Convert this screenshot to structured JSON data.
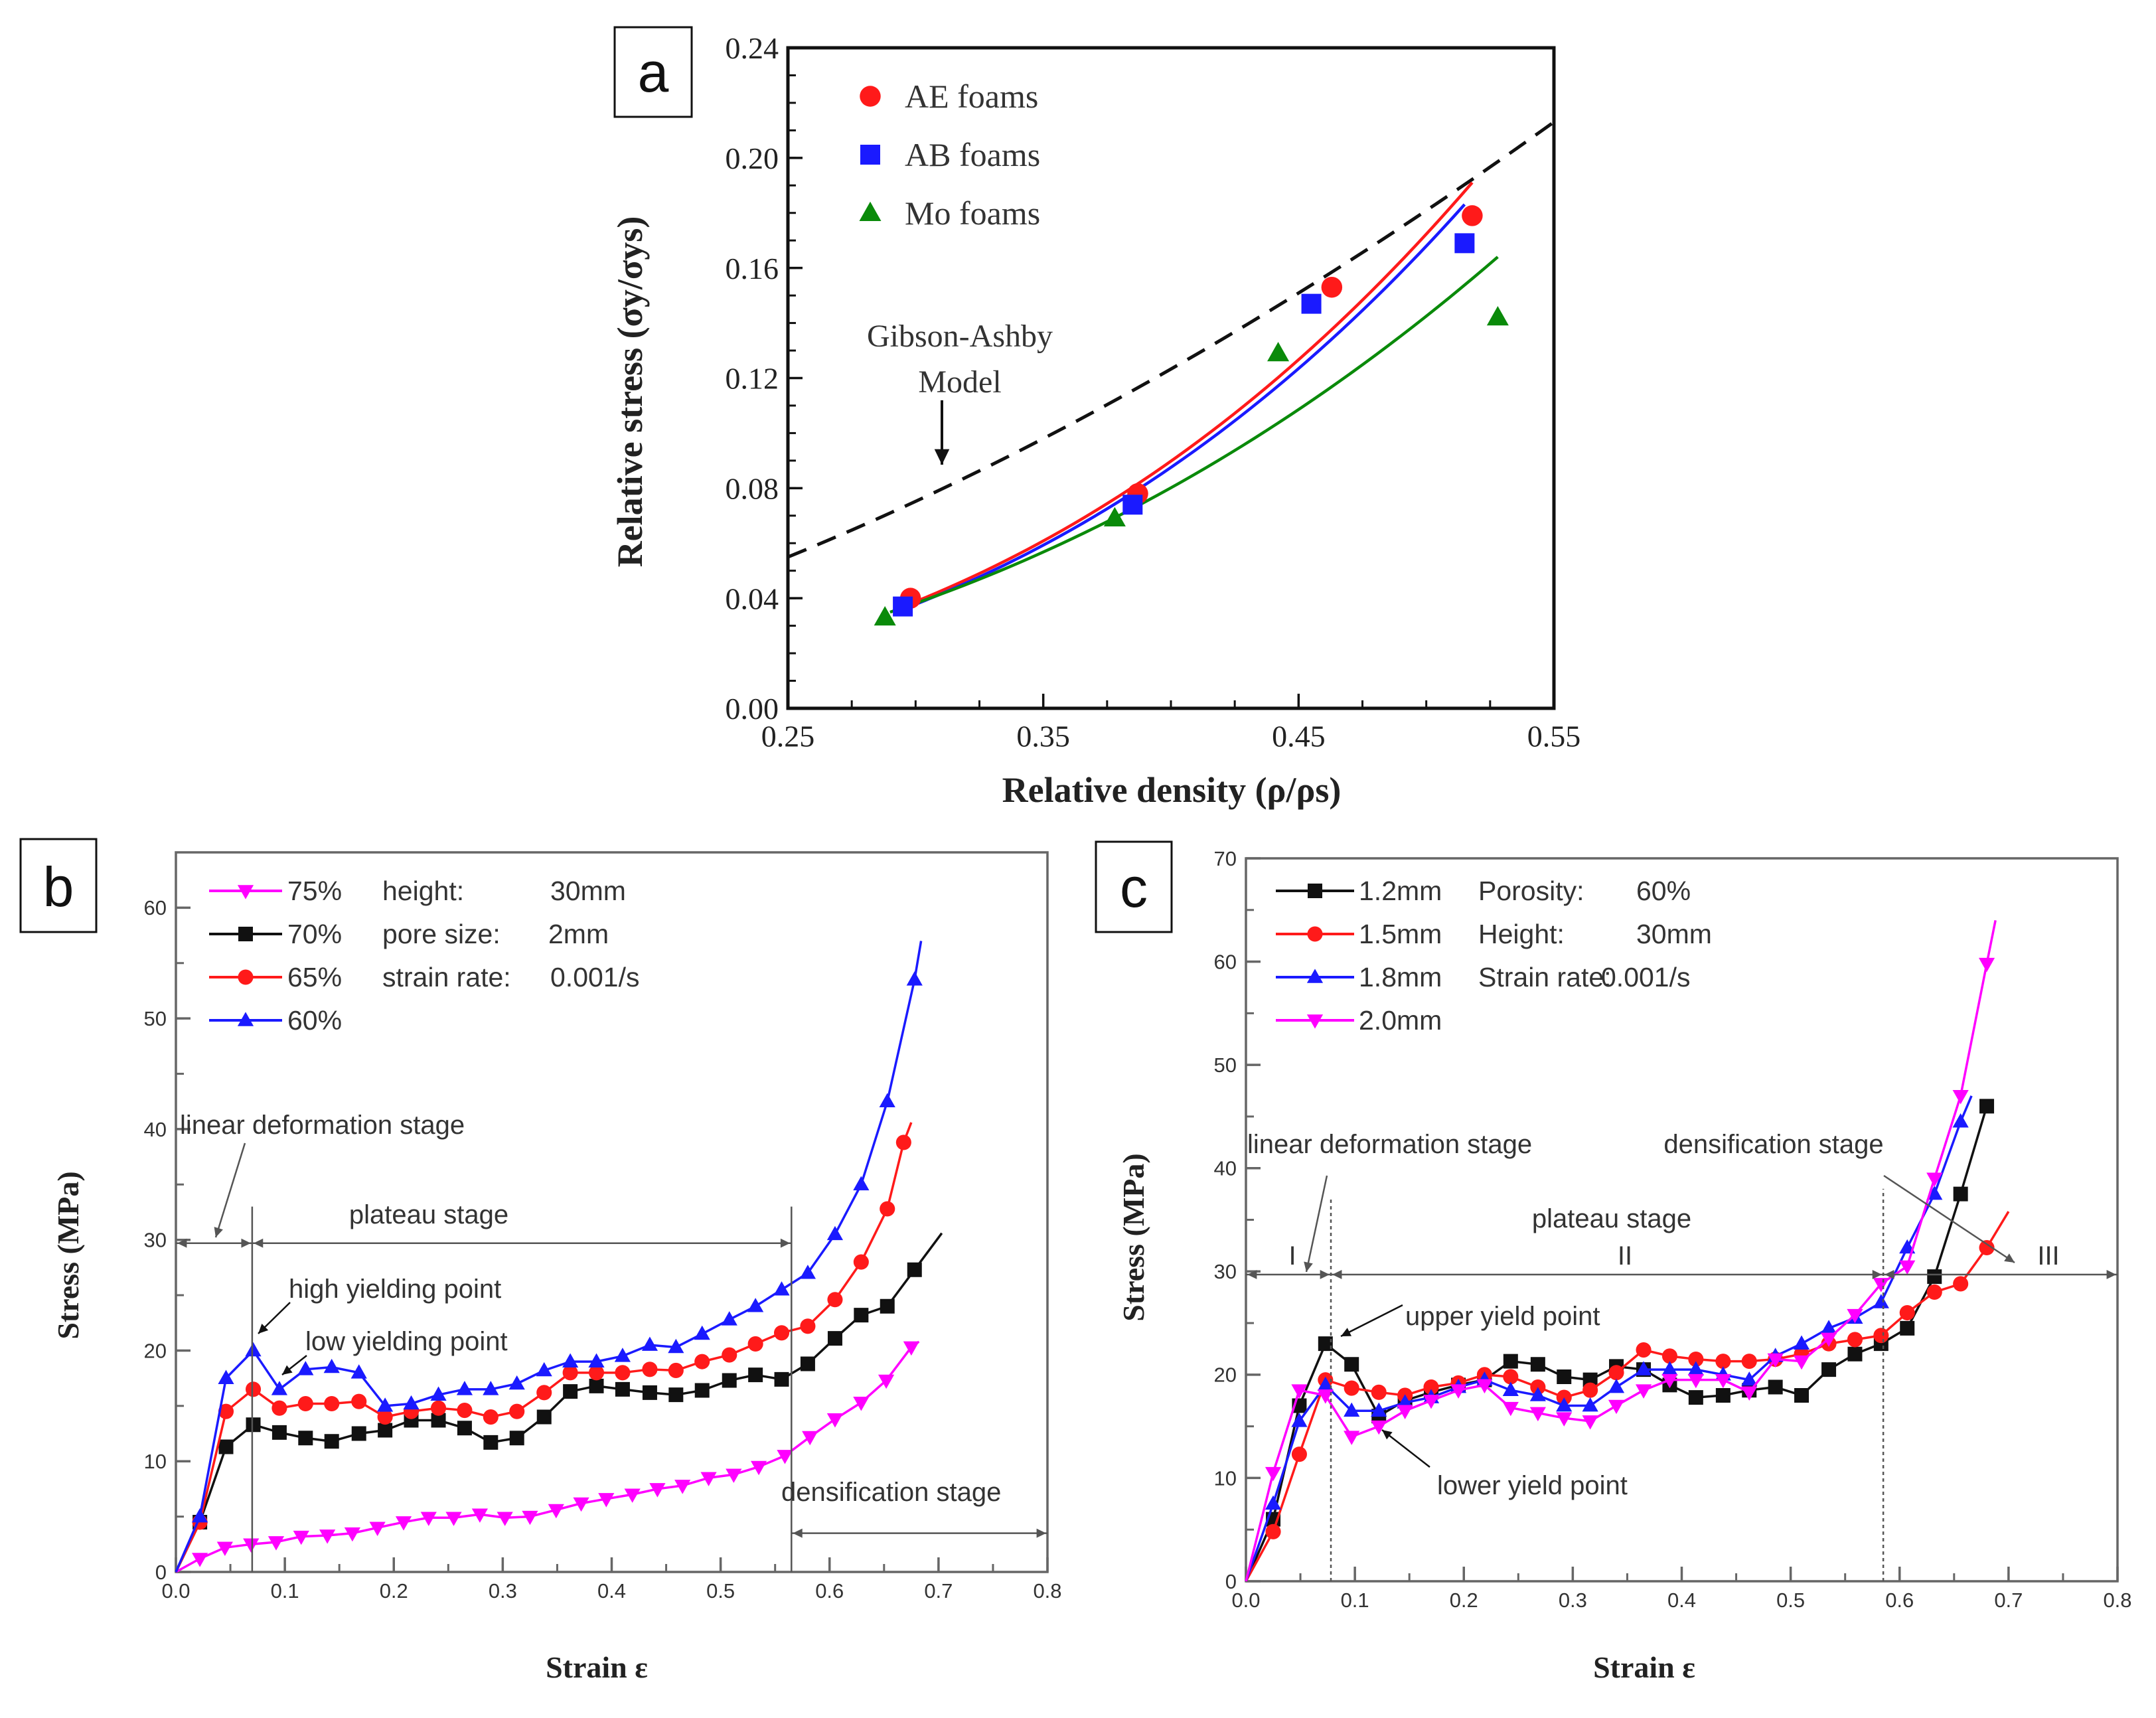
{
  "chart_data": [
    {
      "panel_label": "a",
      "type": "scatter",
      "xlabel": "Relative density (ρ/ρs)",
      "ylabel": "Relative stress (σy/σys)",
      "xlim": [
        0.25,
        0.55
      ],
      "ylim": [
        0,
        0.24
      ],
      "xticks": [
        "0.25",
        "0.35",
        "0.45",
        "0.55"
      ],
      "yticks": [
        "0.00",
        "0.04",
        "0.08",
        "0.12",
        "0.16",
        "0.20",
        "0.24"
      ],
      "grid": false,
      "legend_position": "top-left",
      "series": [
        {
          "name": "AE foams",
          "color": "#ff1a1a",
          "marker": "circle",
          "x": [
            0.298,
            0.387,
            0.463,
            0.518
          ],
          "y": [
            0.04,
            0.078,
            0.153,
            0.179
          ]
        },
        {
          "name": "AB foams",
          "color": "#1a1aff",
          "marker": "square",
          "x": [
            0.295,
            0.385,
            0.455,
            0.515
          ],
          "y": [
            0.037,
            0.074,
            0.147,
            0.169
          ]
        },
        {
          "name": "Mo foams",
          "color": "#0a8a0a",
          "marker": "triangle-up",
          "x": [
            0.288,
            0.378,
            0.442,
            0.528
          ],
          "y": [
            0.033,
            0.069,
            0.129,
            0.142
          ]
        }
      ],
      "fits": [
        {
          "series": "AE foams",
          "color": "#ff1a1a",
          "C": 1.304,
          "n": 2.92,
          "x_range": [
            0.295,
            0.518
          ]
        },
        {
          "series": "AB foams",
          "color": "#1a1aff",
          "C": 1.271,
          "n": 2.92,
          "x_range": [
            0.295,
            0.515
          ]
        },
        {
          "series": "Mo foams",
          "color": "#0a8a0a",
          "C": 0.852,
          "n": 2.58,
          "x_range": [
            0.29,
            0.528
          ]
        }
      ],
      "model": {
        "label_line1": "Gibson-Ashby",
        "label_line2": "Model",
        "color": "#111111",
        "C": 0.595,
        "n": 1.718,
        "x_range": [
          0.25,
          0.55
        ]
      }
    },
    {
      "panel_label": "b",
      "type": "line",
      "xlabel": "Strain ε",
      "ylabel": "Stress (MPa)",
      "xlim": [
        0,
        0.8
      ],
      "ylim": [
        0,
        65
      ],
      "xticks": [
        "0.0",
        "0.1",
        "0.2",
        "0.3",
        "0.4",
        "0.5",
        "0.6",
        "0.7",
        "0.8"
      ],
      "yticks": [
        "0",
        "10",
        "20",
        "30",
        "40",
        "50",
        "60"
      ],
      "grid": false,
      "legend_position": "top-left",
      "conditions": [
        [
          "height:",
          "30mm"
        ],
        [
          "pore size:",
          "2mm"
        ],
        [
          "strain rate:",
          "0.001/s"
        ]
      ],
      "series": [
        {
          "name": "75%",
          "color": "#ff00ff",
          "marker": "triangle-down",
          "x": [
            0,
            0.022,
            0.045,
            0.069,
            0.092,
            0.115,
            0.139,
            0.162,
            0.185,
            0.209,
            0.232,
            0.255,
            0.279,
            0.302,
            0.325,
            0.349,
            0.372,
            0.395,
            0.419,
            0.442,
            0.465,
            0.489,
            0.512,
            0.535,
            0.559,
            0.582,
            0.605,
            0.629,
            0.652,
            0.675
          ],
          "y": [
            0,
            1.2,
            2.2,
            2.5,
            2.7,
            3.2,
            3.3,
            3.5,
            4,
            4.5,
            4.9,
            4.9,
            5.2,
            4.9,
            5,
            5.6,
            6.2,
            6.6,
            7,
            7.5,
            7.8,
            8.5,
            8.8,
            9.5,
            10.5,
            12.2,
            13.8,
            15.3,
            17.3,
            20.3
          ],
          "end": [
            0.682,
            20.8
          ]
        },
        {
          "name": "70%",
          "color": "#111111",
          "marker": "square",
          "x": [
            0,
            0.022,
            0.046,
            0.071,
            0.095,
            0.119,
            0.143,
            0.168,
            0.192,
            0.216,
            0.241,
            0.265,
            0.289,
            0.313,
            0.338,
            0.362,
            0.386,
            0.41,
            0.435,
            0.459,
            0.483,
            0.508,
            0.532,
            0.556,
            0.58,
            0.605,
            0.629,
            0.653,
            0.678
          ],
          "y": [
            0,
            4.5,
            11.3,
            13.3,
            12.6,
            12.1,
            11.8,
            12.5,
            12.8,
            13.7,
            13.7,
            13,
            11.7,
            12.1,
            14,
            16.3,
            16.8,
            16.5,
            16.2,
            16,
            16.4,
            17.3,
            17.8,
            17.4,
            18.8,
            21.1,
            23.2,
            24,
            27.3
          ],
          "end": [
            0.703,
            30.6
          ]
        },
        {
          "name": "65%",
          "color": "#ff1a1a",
          "marker": "circle",
          "x": [
            0,
            0.022,
            0.046,
            0.071,
            0.095,
            0.119,
            0.143,
            0.168,
            0.192,
            0.216,
            0.241,
            0.265,
            0.289,
            0.313,
            0.338,
            0.362,
            0.386,
            0.41,
            0.435,
            0.459,
            0.483,
            0.508,
            0.532,
            0.556,
            0.58,
            0.605,
            0.629,
            0.653,
            0.668
          ],
          "y": [
            0,
            4.5,
            14.5,
            16.5,
            14.8,
            15.2,
            15.2,
            15.4,
            14,
            14.5,
            14.8,
            14.6,
            14,
            14.5,
            16.2,
            18,
            18,
            18,
            18.3,
            18.2,
            19,
            19.6,
            20.6,
            21.6,
            22.2,
            24.6,
            28,
            32.8,
            38.8
          ],
          "end": [
            0.675,
            40.6
          ]
        },
        {
          "name": "60%",
          "color": "#1a1aff",
          "marker": "triangle-up",
          "x": [
            0,
            0.022,
            0.046,
            0.071,
            0.095,
            0.119,
            0.143,
            0.168,
            0.192,
            0.216,
            0.241,
            0.265,
            0.289,
            0.313,
            0.338,
            0.362,
            0.386,
            0.41,
            0.435,
            0.459,
            0.483,
            0.508,
            0.532,
            0.556,
            0.58,
            0.605,
            0.629,
            0.653,
            0.678
          ],
          "y": [
            0,
            5,
            17.5,
            20,
            16.5,
            18.3,
            18.5,
            18,
            15,
            15.2,
            16,
            16.5,
            16.5,
            17,
            18.2,
            19,
            19,
            19.5,
            20.5,
            20.3,
            21.5,
            22.8,
            24,
            25.5,
            27,
            30.5,
            35,
            42.5,
            53.5
          ],
          "end": [
            0.684,
            57
          ]
        }
      ],
      "annotations": [
        "linear deformation stage",
        "plateau stage",
        "high yielding point",
        "low yielding point",
        "densification stage"
      ]
    },
    {
      "panel_label": "c",
      "type": "line",
      "xlabel": "Strain ε",
      "ylabel": "Stress (MPa)",
      "xlim": [
        0,
        0.8
      ],
      "ylim": [
        0,
        70
      ],
      "xticks": [
        "0.0",
        "0.1",
        "0.2",
        "0.3",
        "0.4",
        "0.5",
        "0.6",
        "0.7",
        "0.8"
      ],
      "yticks": [
        "0",
        "10",
        "20",
        "30",
        "40",
        "50",
        "60",
        "70"
      ],
      "grid": false,
      "legend_position": "top-left",
      "conditions": [
        [
          "Porosity:",
          "60%"
        ],
        [
          "Height:",
          "30mm"
        ],
        [
          "Strain rate:",
          "0.001/s"
        ]
      ],
      "series": [
        {
          "name": "1.2mm",
          "color": "#111111",
          "marker": "square",
          "x": [
            0,
            0.025,
            0.049,
            0.073,
            0.097,
            0.122,
            0.146,
            0.17,
            0.195,
            0.219,
            0.243,
            0.268,
            0.292,
            0.316,
            0.34,
            0.365,
            0.389,
            0.413,
            0.438,
            0.462,
            0.486,
            0.51,
            0.535,
            0.559,
            0.583,
            0.607,
            0.632,
            0.656,
            0.68
          ],
          "y": [
            0,
            6,
            17,
            23,
            21,
            16,
            17.5,
            18.3,
            19,
            19.5,
            21.3,
            21,
            19.8,
            19.5,
            20.8,
            20.5,
            19,
            17.8,
            18,
            18.5,
            18.8,
            18,
            20.5,
            22,
            23,
            24.5,
            29.5,
            37.5,
            46
          ],
          "end": [
            0.68,
            46
          ]
        },
        {
          "name": "1.5mm",
          "color": "#ff1a1a",
          "marker": "circle",
          "x": [
            0,
            0.025,
            0.049,
            0.073,
            0.097,
            0.122,
            0.146,
            0.17,
            0.195,
            0.219,
            0.243,
            0.268,
            0.292,
            0.316,
            0.34,
            0.365,
            0.389,
            0.413,
            0.438,
            0.462,
            0.486,
            0.51,
            0.535,
            0.559,
            0.583,
            0.607,
            0.632,
            0.656,
            0.68
          ],
          "y": [
            0,
            4.8,
            12.3,
            19.5,
            18.7,
            18.3,
            18,
            18.8,
            19.2,
            20,
            19.8,
            18.8,
            17.8,
            18.5,
            20.2,
            22.4,
            21.8,
            21.5,
            21.3,
            21.3,
            21.5,
            22,
            23,
            23.4,
            23.8,
            26,
            28,
            28.8,
            32.3
          ],
          "end": [
            0.7,
            35.8
          ]
        },
        {
          "name": "1.8mm",
          "color": "#1a1aff",
          "marker": "triangle-up",
          "x": [
            0,
            0.025,
            0.049,
            0.073,
            0.097,
            0.122,
            0.146,
            0.17,
            0.195,
            0.219,
            0.243,
            0.268,
            0.292,
            0.316,
            0.34,
            0.365,
            0.389,
            0.413,
            0.438,
            0.462,
            0.486,
            0.51,
            0.535,
            0.559,
            0.583,
            0.607,
            0.632,
            0.656
          ],
          "y": [
            0,
            7.5,
            15.5,
            19,
            16.5,
            16.5,
            17.3,
            17.8,
            18.8,
            19.5,
            18.5,
            18,
            17,
            17,
            18.8,
            20.5,
            20.5,
            20.5,
            20,
            19.5,
            21.8,
            23,
            24.5,
            25.5,
            27,
            32.3,
            37.5,
            44.5
          ],
          "end": [
            0.666,
            47
          ]
        },
        {
          "name": "2.0mm",
          "color": "#ff00ff",
          "marker": "triangle-down",
          "x": [
            0,
            0.025,
            0.049,
            0.073,
            0.097,
            0.122,
            0.146,
            0.17,
            0.195,
            0.219,
            0.243,
            0.268,
            0.292,
            0.316,
            0.34,
            0.365,
            0.389,
            0.413,
            0.438,
            0.462,
            0.486,
            0.51,
            0.535,
            0.559,
            0.583,
            0.607,
            0.632,
            0.656,
            0.68
          ],
          "y": [
            0,
            10.5,
            18.5,
            18,
            14,
            15,
            16.5,
            17.5,
            18.5,
            19,
            16.8,
            16.3,
            15.8,
            15.5,
            17,
            18.5,
            19.5,
            19.5,
            19.5,
            18.3,
            21.5,
            21.3,
            23.5,
            25.8,
            28.8,
            30.5,
            39,
            47,
            59.8
          ],
          "end": [
            0.688,
            64
          ]
        }
      ],
      "annotations": [
        "linear deformation stage",
        "plateau stage",
        "densification stage",
        "upper yield point",
        "lower yield point",
        "I",
        "II",
        "III"
      ]
    }
  ]
}
